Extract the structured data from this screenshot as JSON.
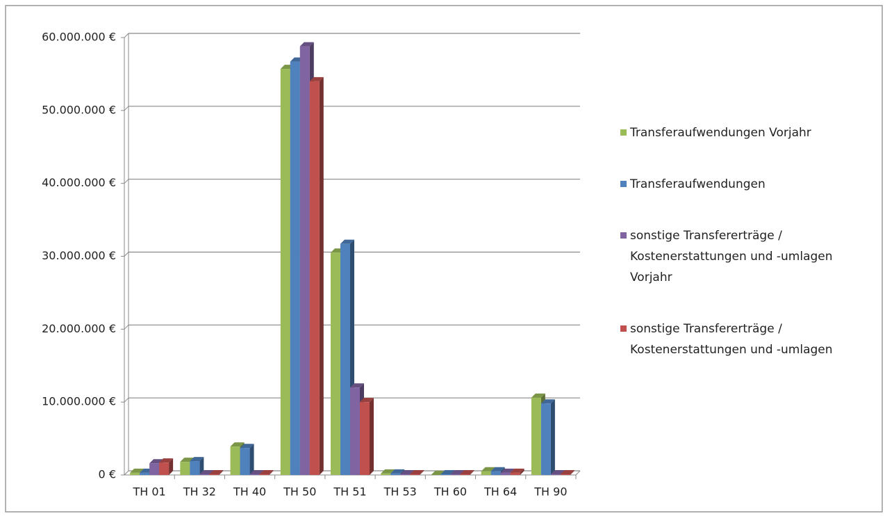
{
  "chart_data": {
    "type": "bar",
    "categories": [
      "TH 01",
      "TH 32",
      "TH 40",
      "TH 50",
      "TH 51",
      "TH 53",
      "TH 60",
      "TH 64",
      "TH 90"
    ],
    "series": [
      {
        "name": "Transferaufwendungen Vorjahr",
        "color": "#9bbb59",
        "values": [
          300000,
          1800000,
          3900000,
          55700000,
          30500000,
          200000,
          0,
          500000,
          10600000
        ]
      },
      {
        "name": "Transferaufwendungen",
        "color": "#4f81bd",
        "values": [
          300000,
          1900000,
          3700000,
          56700000,
          31700000,
          200000,
          100000,
          500000,
          9800000
        ]
      },
      {
        "name": "sonstige Transfererträge / Kostenerstattungen und -umlagen Vorjahr",
        "color": "#8064a2",
        "values": [
          1600000,
          100000,
          100000,
          58800000,
          12000000,
          100000,
          100000,
          300000,
          100000
        ]
      },
      {
        "name": "sonstige Transfererträge / Kostenerstattungen und -umlagen",
        "color": "#c0504d",
        "values": [
          1700000,
          100000,
          100000,
          54000000,
          10000000,
          100000,
          100000,
          300000,
          100000
        ]
      }
    ],
    "ylim": [
      0,
      60000000
    ],
    "yticks": [
      {
        "value": 0,
        "label": "0 €"
      },
      {
        "value": 10000000,
        "label": "10.000.000 €"
      },
      {
        "value": 20000000,
        "label": "20.000.000 €"
      },
      {
        "value": 30000000,
        "label": "30.000.000 €"
      },
      {
        "value": 40000000,
        "label": "40.000.000 €"
      },
      {
        "value": 50000000,
        "label": "50.000.000 €"
      },
      {
        "value": 60000000,
        "label": "60.000.000 €"
      }
    ],
    "grid": true,
    "legend": "right"
  }
}
